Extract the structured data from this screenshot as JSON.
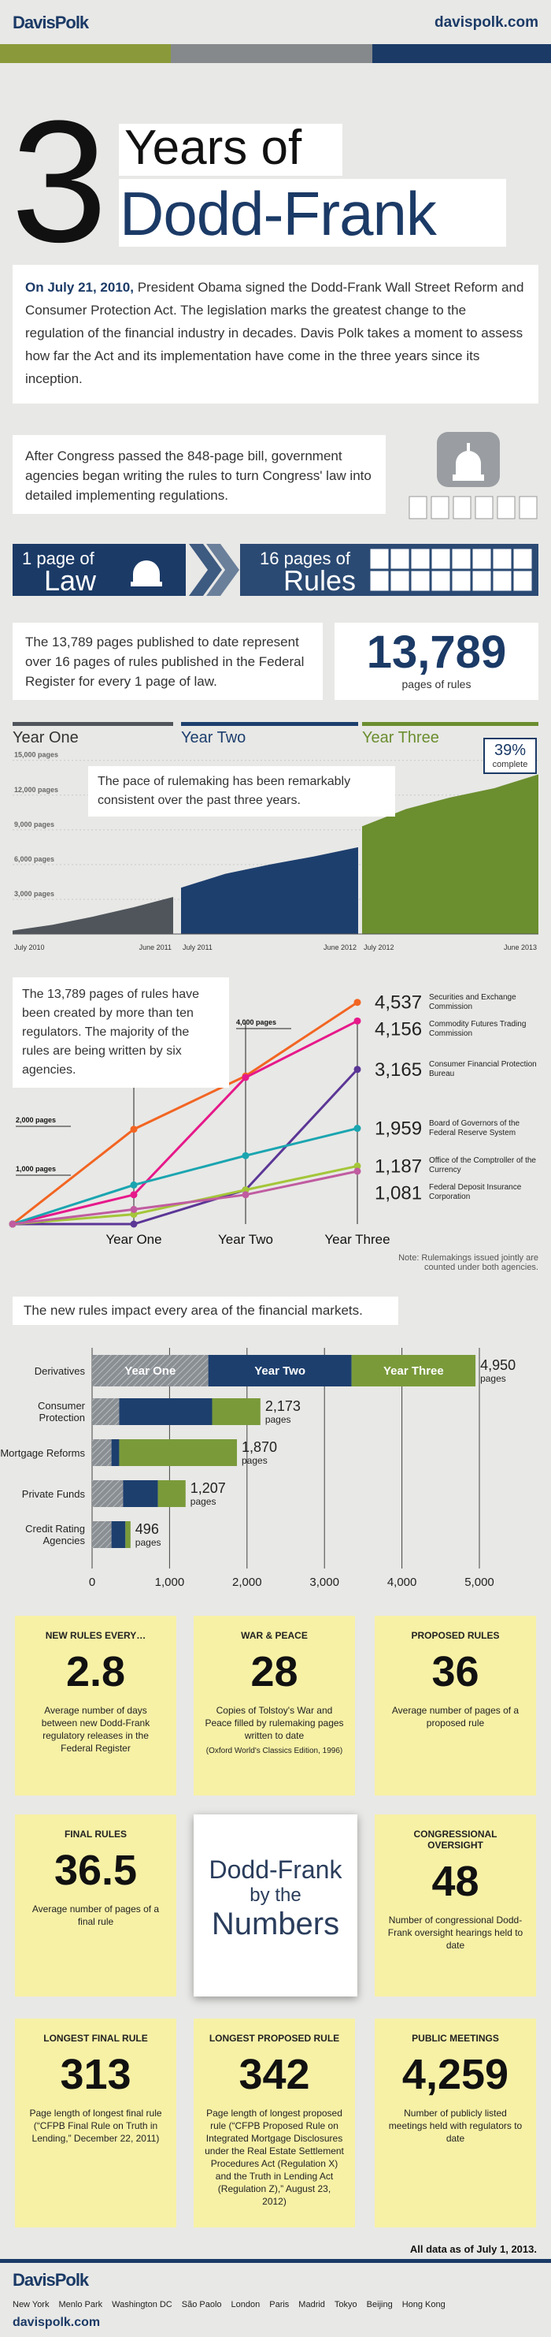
{
  "header": {
    "logo": "DavisPolk",
    "url": "davispolk.com"
  },
  "title": {
    "number": "3",
    "line1": "Years of",
    "line2": "Dodd-Frank"
  },
  "intro": {
    "lead": "On July 21, 2010,",
    "text": "President Obama signed the Dodd-Frank Wall Street Reform and Consumer Protection Act. The legislation marks the greatest change to the regulation of the financial industry in decades. Davis Polk takes a moment to assess how far the Act and its implementation have come in the three years since its inception."
  },
  "congress": "After Congress passed the 848-page bill, government agencies began writing the rules to turn Congress' law into detailed implementing regulations.",
  "law_banner": {
    "left_small": "1 page of",
    "left_big": "Law",
    "right_small": "16 pages of",
    "right_big": "Rules"
  },
  "ratio_text": "The 13,789 pages published to date represent over 16 pages of rules published in the Federal Register for every 1 page of law.",
  "total": {
    "value": "13,789",
    "label": "pages of rules"
  },
  "chart_data": [
    {
      "type": "area",
      "annotation": "The pace of rulemaking has been remarkably consistent over the past three years.",
      "complete_label": "39%",
      "complete_text": "complete",
      "ylim": [
        0,
        16000
      ],
      "yticks": [
        {
          "value": 3000,
          "label": "3,000 pages"
        },
        {
          "value": 6000,
          "label": "6,000 pages"
        },
        {
          "value": 9000,
          "label": "9,000 pages"
        },
        {
          "value": 12000,
          "label": "12,000 pages"
        },
        {
          "value": 15000,
          "label": "15,000 pages"
        }
      ],
      "grid": true,
      "series": [
        {
          "name": "Year One",
          "color": "#4f555b",
          "x_labels": [
            "July 2010",
            "June 2011"
          ],
          "values": [
            300,
            800,
            1500,
            2300,
            3200
          ]
        },
        {
          "name": "Year Two",
          "color": "#1d3f6e",
          "x_labels": [
            "July 2011",
            "June 2012"
          ],
          "values": [
            4000,
            5200,
            6000,
            6700,
            7500
          ]
        },
        {
          "name": "Year Three",
          "color": "#6b8e2f",
          "x_labels": [
            "July 2012",
            "June 2013"
          ],
          "values": [
            9300,
            10800,
            11800,
            12600,
            13789
          ]
        }
      ]
    },
    {
      "type": "line",
      "text": "The 13,789 pages of rules have been created by more than ten regulators. The majority of the rules are being written by six agencies.",
      "categories": [
        null,
        "Year One",
        "Year Two",
        "Year Three"
      ],
      "ylim": [
        0,
        5000
      ],
      "yticks": [
        {
          "value": 1000,
          "label": "1,000 pages"
        },
        {
          "value": 2000,
          "label": "2,000 pages"
        },
        {
          "value": 4000,
          "label": "4,000 pages"
        }
      ],
      "series": [
        {
          "name": "Securities and Exchange Commission",
          "color": "#f26522",
          "values": [
            0,
            1940,
            3030,
            4537
          ],
          "value_labels": [
            null,
            null,
            null,
            "4,537"
          ]
        },
        {
          "name": "Commodity Futures Trading Commission",
          "color": "#e6198a",
          "values": [
            0,
            600,
            3000,
            4156
          ],
          "value_labels": [
            null,
            null,
            null,
            "4,156"
          ]
        },
        {
          "name": "Consumer Financial Protection Bureau",
          "color": "#5b3696",
          "values": [
            0,
            0,
            700,
            3165
          ],
          "value_labels": [
            null,
            null,
            null,
            "3,165"
          ]
        },
        {
          "name": "Board of Governors of the Federal Reserve System",
          "color": "#1aa5b0",
          "values": [
            0,
            800,
            1400,
            1959
          ],
          "value_labels": [
            null,
            null,
            null,
            "1,959"
          ]
        },
        {
          "name": "Office of the Comptroller of the Currency",
          "color": "#a4c639",
          "values": [
            0,
            200,
            700,
            1187
          ],
          "value_labels": [
            null,
            null,
            null,
            "1,187"
          ]
        },
        {
          "name": "Federal Deposit Insurance Corporation",
          "color": "#c05ca0",
          "values": [
            0,
            300,
            600,
            1081
          ],
          "value_labels": [
            null,
            null,
            null,
            "1,081"
          ]
        }
      ],
      "note": "Note: Rulemakings issued jointly are counted under both agencies."
    },
    {
      "type": "bar",
      "orientation": "horizontal",
      "stacked": true,
      "subtitle": "The new rules impact every area of the financial markets.",
      "categories": [
        "Derivatives",
        "Consumer Protection",
        "Mortgage Reforms",
        "Private Funds",
        "Credit Rating Agencies"
      ],
      "series": [
        {
          "name": "Year One",
          "color": "#8a8f94",
          "values": [
            1500,
            350,
            250,
            400,
            250
          ]
        },
        {
          "name": "Year Two",
          "color": "#1d3f6e",
          "values": [
            1850,
            1200,
            100,
            450,
            180
          ]
        },
        {
          "name": "Year Three",
          "color": "#7a9a3a",
          "values": [
            1600,
            623,
            1520,
            357,
            66
          ]
        }
      ],
      "totals": [
        4950,
        2173,
        1870,
        1207,
        496
      ],
      "total_labels": [
        "4,950",
        "2,173",
        "1,870",
        "1,207",
        "496"
      ],
      "total_unit": "pages",
      "xlim": [
        0,
        5000
      ],
      "xticks": [
        0,
        {
          "value": 1000,
          "label": "1,000"
        },
        {
          "value": 2000,
          "label": "2,000"
        },
        {
          "value": 3000,
          "label": "3,000"
        },
        {
          "value": 4000,
          "label": "4,000"
        },
        {
          "value": 5000,
          "label": "5,000"
        }
      ]
    }
  ],
  "numbers": {
    "title_lines": [
      "Dodd-Frank",
      "by the",
      "Numbers"
    ],
    "cells": [
      {
        "title": "NEW RULES EVERY…",
        "value": "2.8",
        "desc": "Average number of days between new Dodd-Frank regulatory releases in the Federal Register"
      },
      {
        "title": "WAR & PEACE",
        "value": "28",
        "desc": "Copies of Tolstoy's War and Peace filled by rulemaking pages written to date",
        "note": "(Oxford World's Classics Edition, 1996)"
      },
      {
        "title": "PROPOSED RULES",
        "value": "36",
        "desc": "Average number of pages of a proposed rule"
      },
      {
        "title": "FINAL RULES",
        "value": "36.5",
        "desc": "Average number of pages of a final rule"
      },
      {
        "title": "CONGRESSIONAL OVERSIGHT",
        "value": "48",
        "desc": "Number of congressional Dodd-Frank oversight hearings held to date"
      },
      {
        "title": "LONGEST FINAL RULE",
        "value": "313",
        "desc": "Page length of longest final rule (“CFPB Final Rule on Truth in Lending,” December 22, 2011)"
      },
      {
        "title": "LONGEST PROPOSED RULE",
        "value": "342",
        "desc": "Page length of longest proposed rule (“CFPB Proposed Rule on Integrated Mortgage Disclosures under the Real Estate Settlement Procedures Act (Regulation X) and the Truth in Lending Act (Regulation Z),” August 23, 2012)"
      },
      {
        "title": "PUBLIC MEETINGS",
        "value": "4,259",
        "desc": "Number of publicly listed meetings held with regulators to date"
      }
    ]
  },
  "as_of": "All data as of July 1, 2013.",
  "footer": {
    "logo": "DavisPolk",
    "cities": [
      "New York",
      "Menlo Park",
      "Washington DC",
      "São Paolo",
      "London",
      "Paris",
      "Madrid",
      "Tokyo",
      "Beijing",
      "Hong Kong"
    ],
    "url": "davispolk.com"
  }
}
